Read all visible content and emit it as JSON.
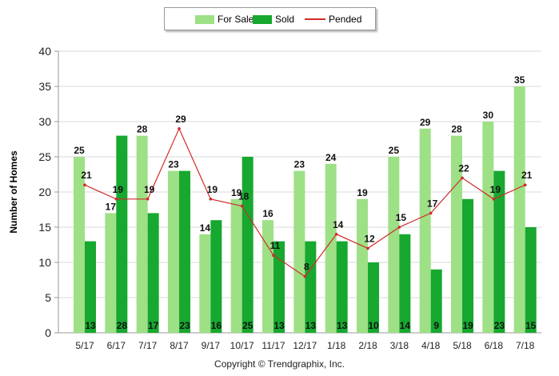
{
  "chart_data": {
    "type": "bar",
    "categories": [
      "5/17",
      "6/17",
      "7/17",
      "8/17",
      "9/17",
      "10/17",
      "11/17",
      "12/17",
      "1/18",
      "2/18",
      "3/18",
      "4/18",
      "5/18",
      "6/18",
      "7/18"
    ],
    "series": [
      {
        "name": "For Sale",
        "type": "bar",
        "color": "#9ee086",
        "values": [
          25,
          17,
          28,
          23,
          14,
          19,
          16,
          23,
          24,
          19,
          25,
          29,
          28,
          30,
          35
        ]
      },
      {
        "name": "Sold",
        "type": "bar",
        "color": "#17a82f",
        "values": [
          13,
          28,
          17,
          23,
          16,
          25,
          13,
          13,
          13,
          10,
          14,
          9,
          19,
          23,
          15
        ]
      },
      {
        "name": "Pended",
        "type": "line",
        "color": "#d12a2a",
        "values": [
          21,
          19,
          19,
          29,
          19,
          18,
          11,
          8,
          14,
          12,
          15,
          17,
          22,
          19,
          21
        ]
      }
    ],
    "title": "",
    "xlabel": "",
    "ylabel": "Number of Homes",
    "ylim": [
      0,
      40
    ],
    "yticks": [
      0,
      5,
      10,
      15,
      20,
      25,
      30,
      35,
      40
    ],
    "grid": true,
    "legend_position": "top-center",
    "footer": "Copyright © Trendgraphix, Inc."
  }
}
